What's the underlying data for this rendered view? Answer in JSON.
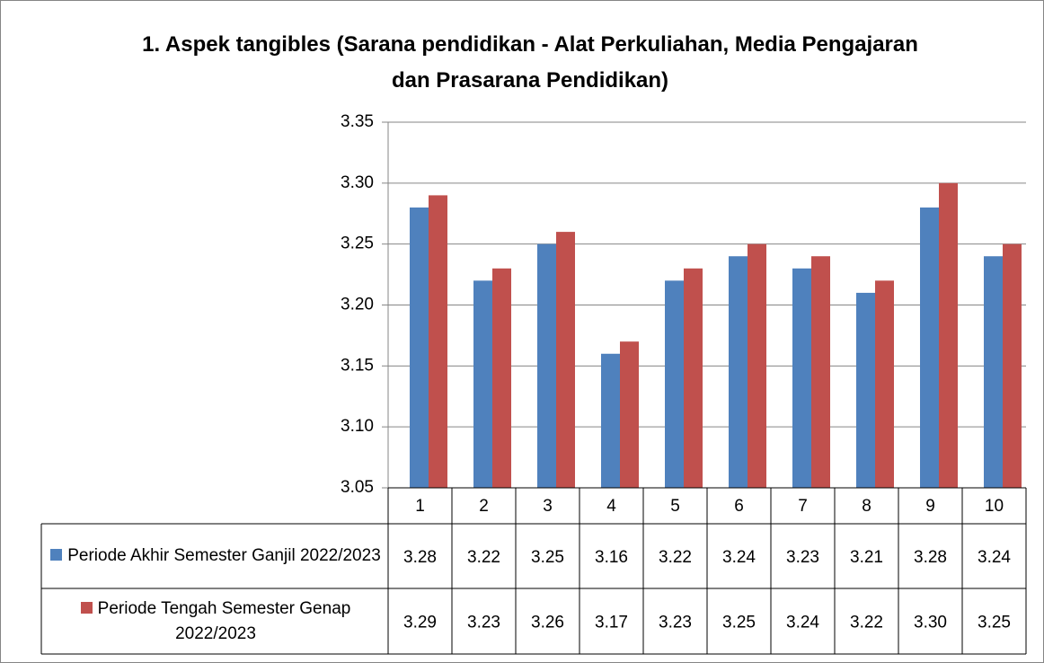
{
  "chart_data": {
    "type": "bar",
    "title": "1. Aspek tangibles (Sarana pendidikan - Alat Perkuliahan, Media Pengajaran dan Prasarana Pendidikan)",
    "categories": [
      "1",
      "2",
      "3",
      "4",
      "5",
      "6",
      "7",
      "8",
      "9",
      "10"
    ],
    "series": [
      {
        "name": "Periode Akhir Semester Ganjil 2022/2023",
        "color": "#4f81bd",
        "values": [
          3.28,
          3.22,
          3.25,
          3.16,
          3.22,
          3.24,
          3.23,
          3.21,
          3.28,
          3.24
        ],
        "value_labels": [
          "3.28",
          "3.22",
          "3.25",
          "3.16",
          "3.22",
          "3.24",
          "3.23",
          "3.21",
          "3.28",
          "3.24"
        ]
      },
      {
        "name": "Periode Tengah Semester Genap 2022/2023",
        "color": "#c0504d",
        "values": [
          3.29,
          3.23,
          3.26,
          3.17,
          3.23,
          3.25,
          3.24,
          3.22,
          3.3,
          3.25
        ],
        "value_labels": [
          "3.29",
          "3.23",
          "3.26",
          "3.17",
          "3.23",
          "3.25",
          "3.24",
          "3.22",
          "3.30",
          "3.25"
        ]
      }
    ],
    "ylim": [
      3.05,
      3.35
    ],
    "yticks": [
      3.05,
      {
        "value": 3.1,
        "label": "3.10"
      },
      3.15,
      {
        "value": 3.2,
        "label": "3.20"
      },
      3.25,
      {
        "value": 3.3,
        "label": "3.30"
      },
      3.35
    ],
    "grid": true
  }
}
